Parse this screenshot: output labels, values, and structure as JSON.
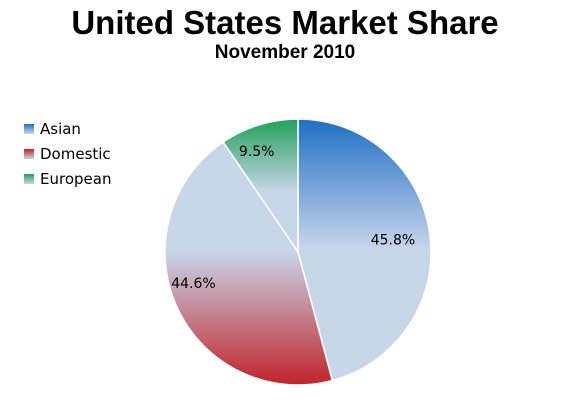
{
  "chart_data": {
    "type": "pie",
    "title": "United States Market Share",
    "subtitle": "November 2010",
    "legend_position": "left",
    "slices": [
      {
        "label": "Asian",
        "value": 45.8,
        "display": "45.8%",
        "color": "#1f6fc4",
        "light": "#c8d6ea"
      },
      {
        "label": "Domestic",
        "value": 44.6,
        "display": "44.6%",
        "color": "#c0242a",
        "light": "#c8d6ea"
      },
      {
        "label": "European",
        "value": 9.5,
        "display": "9.5%",
        "color": "#22a05a",
        "light": "#c8d6ea"
      }
    ]
  }
}
